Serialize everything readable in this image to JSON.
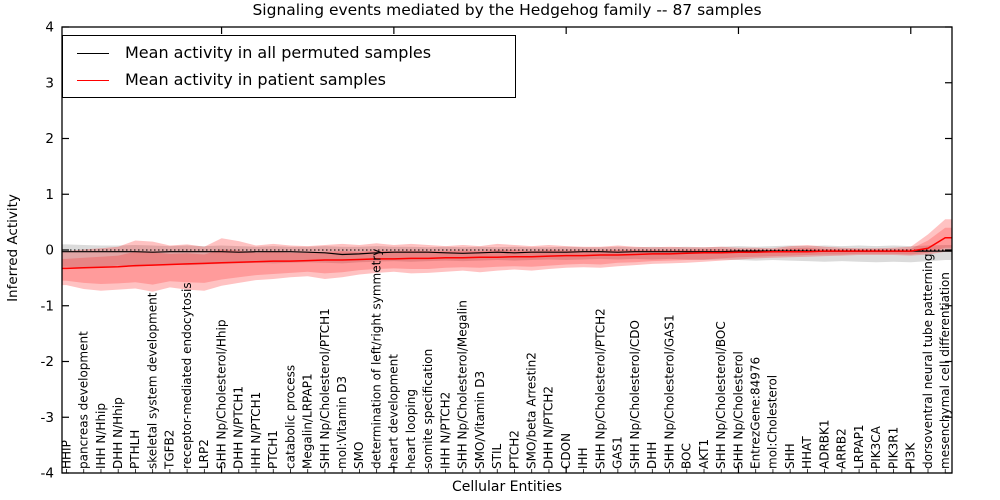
{
  "title": "Signaling events mediated by the Hedgehog family -- 87 samples",
  "legend": {
    "items": [
      {
        "label": "Mean activity in all permuted samples",
        "color": "#000000"
      },
      {
        "label": "Mean activity in patient samples",
        "color": "#ff0000"
      }
    ]
  },
  "axes": {
    "ylabel": "Inferred Activity",
    "xlabel": "Cellular Entities",
    "yticks": [
      -4,
      -3,
      -2,
      -1,
      0,
      1,
      2,
      3,
      4
    ]
  },
  "chart_data": {
    "type": "line",
    "title": "Signaling events mediated by the Hedgehog family -- 87 samples",
    "xlabel": "Cellular Entities",
    "ylabel": "Inferred Activity",
    "ylim": [
      -4,
      4
    ],
    "grid": false,
    "legend_position": "upper left",
    "zero_line": 0,
    "categories": [
      "HHIP",
      "pancreas development",
      "IHH N/Hhip",
      "DHH N/Hhip",
      "PTHLH",
      "skeletal system development",
      "TGFB2",
      "receptor-mediated endocytosis",
      "LRP2",
      "SHH Np/Cholesterol/Hhip",
      "DHH N/PTCH1",
      "IHH N/PTCH1",
      "PTCH1",
      "catabolic process",
      "Megalin/LRPAP1",
      "SHH Np/Cholesterol/PTCH1",
      "mol:Vitamin D3",
      "SMO",
      "determination of left/right symmetry",
      "heart development",
      "heart looping",
      "somite specification",
      "IHH N/PTCH2",
      "SHH Np/Cholesterol/Megalin",
      "SMO/Vitamin D3",
      "STIL",
      "PTCH2",
      "SMO/beta Arrestin2",
      "DHH N/PTCH2",
      "CDON",
      "IHH",
      "SHH Np/Cholesterol/PTCH2",
      "GAS1",
      "SHH Np/Cholesterol/CDO",
      "DHH",
      "SHH Np/Cholesterol/GAS1",
      "BOC",
      "AKT1",
      "SHH Np/Cholesterol/BOC",
      "SHH Np/Cholesterol",
      "EntrezGene:84976",
      "mol:Cholesterol",
      "SHH",
      "HHAT",
      "ADRBK1",
      "ARRB2",
      "LRPAP1",
      "PIK3CA",
      "PIK3R1",
      "PI3K",
      "dorsoventral neural tube patterning",
      "mesenchymal cell differentiation"
    ],
    "series": [
      {
        "name": "Mean activity in all permuted samples",
        "color": "#000000",
        "values": [
          -0.03,
          -0.03,
          -0.03,
          -0.03,
          -0.03,
          -0.04,
          -0.03,
          -0.03,
          -0.03,
          -0.03,
          -0.04,
          -0.03,
          -0.03,
          -0.03,
          -0.04,
          -0.05,
          -0.08,
          -0.07,
          -0.05,
          -0.04,
          -0.04,
          -0.04,
          -0.05,
          -0.06,
          -0.05,
          -0.04,
          -0.05,
          -0.04,
          -0.04,
          -0.04,
          -0.03,
          -0.03,
          -0.04,
          -0.03,
          -0.03,
          -0.03,
          -0.03,
          -0.03,
          -0.03,
          -0.02,
          -0.02,
          -0.02,
          -0.02,
          -0.02,
          -0.02,
          -0.02,
          -0.02,
          -0.02,
          -0.02,
          -0.02,
          -0.02,
          -0.02
        ]
      },
      {
        "name": "Mean activity in patient samples",
        "color": "#ff0000",
        "values": [
          -0.33,
          -0.32,
          -0.31,
          -0.3,
          -0.28,
          -0.27,
          -0.26,
          -0.25,
          -0.24,
          -0.23,
          -0.22,
          -0.21,
          -0.2,
          -0.2,
          -0.19,
          -0.18,
          -0.18,
          -0.17,
          -0.16,
          -0.16,
          -0.15,
          -0.15,
          -0.14,
          -0.14,
          -0.13,
          -0.13,
          -0.12,
          -0.12,
          -0.11,
          -0.1,
          -0.1,
          -0.09,
          -0.09,
          -0.08,
          -0.07,
          -0.07,
          -0.06,
          -0.05,
          -0.05,
          -0.04,
          -0.04,
          -0.03,
          -0.03,
          -0.03,
          -0.02,
          -0.02,
          -0.02,
          -0.02,
          -0.02,
          -0.02,
          0.03,
          0.22
        ]
      }
    ],
    "bands": [
      {
        "name": "permuted-range",
        "color": "#b8b8b8",
        "opacity": 0.5,
        "upper": [
          0.1,
          0.09,
          0.08,
          0.08,
          0.09,
          0.08,
          0.07,
          0.08,
          0.07,
          0.08,
          0.07,
          0.06,
          0.07,
          0.06,
          0.06,
          0.07,
          0.06,
          0.06,
          0.07,
          0.06,
          0.06,
          0.05,
          0.06,
          0.05,
          0.06,
          0.05,
          0.06,
          0.05,
          0.05,
          0.06,
          0.05,
          0.05,
          0.06,
          0.05,
          0.06,
          0.05,
          0.06,
          0.05,
          0.06,
          0.07,
          0.06,
          0.07,
          0.08,
          0.07,
          0.08,
          0.07,
          0.08,
          0.07,
          0.08,
          0.07,
          0.08,
          0.09
        ],
        "lower": [
          -0.3,
          -0.32,
          -0.3,
          -0.28,
          -0.3,
          -0.28,
          -0.26,
          -0.27,
          -0.26,
          -0.25,
          -0.24,
          -0.23,
          -0.24,
          -0.23,
          -0.22,
          -0.23,
          -0.24,
          -0.22,
          -0.21,
          -0.2,
          -0.21,
          -0.2,
          -0.19,
          -0.2,
          -0.19,
          -0.18,
          -0.19,
          -0.18,
          -0.17,
          -0.18,
          -0.17,
          -0.16,
          -0.17,
          -0.16,
          -0.17,
          -0.16,
          -0.17,
          -0.18,
          -0.17,
          -0.18,
          -0.19,
          -0.18,
          -0.19,
          -0.2,
          -0.21,
          -0.2,
          -0.21,
          -0.22,
          -0.21,
          -0.22,
          -0.2,
          -0.18
        ]
      },
      {
        "name": "patient-range",
        "color": "#ff0000",
        "opacity": 0.24,
        "upper": [
          -0.02,
          0.01,
          0.03,
          0.06,
          0.17,
          0.15,
          0.08,
          0.1,
          0.06,
          0.21,
          0.16,
          0.08,
          0.11,
          0.08,
          0.07,
          0.09,
          0.11,
          0.09,
          0.12,
          0.09,
          0.11,
          0.09,
          0.07,
          0.09,
          0.07,
          0.11,
          0.09,
          0.07,
          0.09,
          0.07,
          0.06,
          0.06,
          0.08,
          0.06,
          0.05,
          0.06,
          0.05,
          0.05,
          0.06,
          0.04,
          0.04,
          0.03,
          0.07,
          0.09,
          0.06,
          0.04,
          0.03,
          0.03,
          0.04,
          0.06,
          0.28,
          0.55
        ],
        "lower": [
          -0.63,
          -0.7,
          -0.73,
          -0.71,
          -0.69,
          -0.75,
          -0.67,
          -0.71,
          -0.73,
          -0.64,
          -0.59,
          -0.54,
          -0.52,
          -0.49,
          -0.47,
          -0.52,
          -0.49,
          -0.44,
          -0.41,
          -0.39,
          -0.42,
          -0.41,
          -0.39,
          -0.37,
          -0.4,
          -0.37,
          -0.35,
          -0.37,
          -0.34,
          -0.32,
          -0.31,
          -0.32,
          -0.29,
          -0.27,
          -0.25,
          -0.24,
          -0.23,
          -0.21,
          -0.19,
          -0.17,
          -0.15,
          -0.14,
          -0.13,
          -0.12,
          -0.11,
          -0.1,
          -0.09,
          -0.09,
          -0.09,
          -0.1,
          -0.08,
          -0.03
        ]
      },
      {
        "name": "patient-core",
        "color": "#ff0000",
        "opacity": 0.2,
        "upper": [
          -0.16,
          -0.14,
          -0.12,
          -0.1,
          -0.03,
          -0.04,
          -0.07,
          -0.06,
          -0.08,
          0.01,
          -0.01,
          -0.05,
          -0.03,
          -0.05,
          -0.05,
          -0.03,
          -0.02,
          -0.03,
          -0.01,
          -0.02,
          -0.01,
          -0.02,
          -0.02,
          -0.01,
          -0.02,
          0.0,
          0.0,
          -0.02,
          0.0,
          -0.01,
          -0.01,
          -0.01,
          0.0,
          0.0,
          0.0,
          0.0,
          0.0,
          0.01,
          0.01,
          0.0,
          0.0,
          0.0,
          0.03,
          0.04,
          0.02,
          0.01,
          0.01,
          0.01,
          0.01,
          0.02,
          0.17,
          0.4
        ],
        "lower": [
          -0.55,
          -0.59,
          -0.61,
          -0.6,
          -0.58,
          -0.62,
          -0.56,
          -0.58,
          -0.59,
          -0.53,
          -0.49,
          -0.45,
          -0.43,
          -0.41,
          -0.39,
          -0.42,
          -0.4,
          -0.36,
          -0.34,
          -0.33,
          -0.34,
          -0.34,
          -0.32,
          -0.31,
          -0.32,
          -0.3,
          -0.29,
          -0.3,
          -0.28,
          -0.26,
          -0.25,
          -0.26,
          -0.23,
          -0.22,
          -0.2,
          -0.19,
          -0.18,
          -0.17,
          -0.15,
          -0.13,
          -0.12,
          -0.11,
          -0.1,
          -0.09,
          -0.08,
          -0.08,
          -0.07,
          -0.07,
          -0.07,
          -0.08,
          -0.05,
          0.04
        ]
      }
    ]
  }
}
